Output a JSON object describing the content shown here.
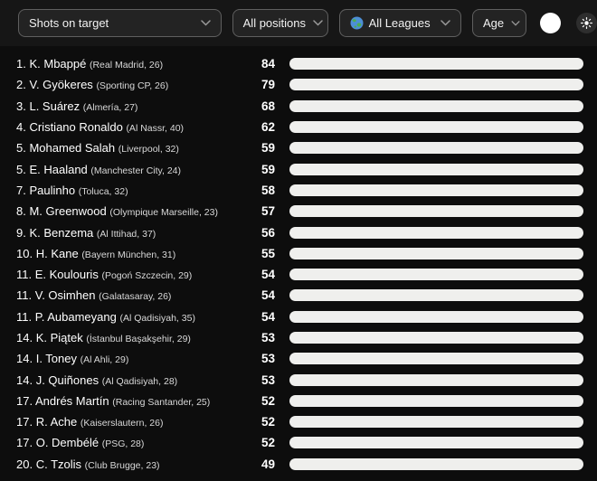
{
  "colors": {
    "background": "#0d0d0d",
    "header_background": "#161616",
    "bar_fill": "#2b6ef0",
    "bar_track": "#efefed",
    "dropdown_background": "#232323",
    "dropdown_border": "#5f5f5f",
    "text_primary": "#ffffff",
    "text_meta": "#d9d9d9"
  },
  "filters": [
    {
      "id": "stat",
      "label": "Shots on target"
    },
    {
      "id": "positions",
      "label": "All positions"
    },
    {
      "id": "leagues",
      "label": "All Leagues",
      "icon": "globe-icon"
    },
    {
      "id": "age",
      "label": "Age"
    }
  ],
  "theme_controls": {
    "toggle": "theme-toggle-circle",
    "sun": "sun-icon"
  },
  "chart_data": {
    "type": "bar",
    "orientation": "horizontal",
    "title": "Shots on target",
    "xlim": [
      0,
      84
    ],
    "max_value": 84,
    "bar_color": "#2b6ef0",
    "track_color": "#efefed",
    "players": [
      {
        "rank": "1.",
        "name": "K. Mbappé",
        "club": "Real Madrid",
        "age": 26,
        "value": 84
      },
      {
        "rank": "2.",
        "name": "V. Gyökeres",
        "club": "Sporting CP",
        "age": 26,
        "value": 79
      },
      {
        "rank": "3.",
        "name": "L. Suárez",
        "club": "Almería",
        "age": 27,
        "value": 68
      },
      {
        "rank": "4.",
        "name": "Cristiano Ronaldo",
        "club": "Al Nassr",
        "age": 40,
        "value": 62
      },
      {
        "rank": "5.",
        "name": "Mohamed Salah",
        "club": "Liverpool",
        "age": 32,
        "value": 59
      },
      {
        "rank": "5.",
        "name": "E. Haaland",
        "club": "Manchester City",
        "age": 24,
        "value": 59
      },
      {
        "rank": "7.",
        "name": "Paulinho",
        "club": "Toluca",
        "age": 32,
        "value": 58
      },
      {
        "rank": "8.",
        "name": "M. Greenwood",
        "club": "Olympique Marseille",
        "age": 23,
        "value": 57
      },
      {
        "rank": "9.",
        "name": "K. Benzema",
        "club": "Al Ittihad",
        "age": 37,
        "value": 56
      },
      {
        "rank": "10.",
        "name": "H. Kane",
        "club": "Bayern München",
        "age": 31,
        "value": 55
      },
      {
        "rank": "11.",
        "name": "E. Koulouris",
        "club": "Pogoń Szczecin",
        "age": 29,
        "value": 54
      },
      {
        "rank": "11.",
        "name": "V. Osimhen",
        "club": "Galatasaray",
        "age": 26,
        "value": 54
      },
      {
        "rank": "11.",
        "name": "P. Aubameyang",
        "club": "Al Qadisiyah",
        "age": 35,
        "value": 54
      },
      {
        "rank": "14.",
        "name": "K. Piątek",
        "club": "İstanbul Başakşehir",
        "age": 29,
        "value": 53
      },
      {
        "rank": "14.",
        "name": "I. Toney",
        "club": "Al Ahli",
        "age": 29,
        "value": 53
      },
      {
        "rank": "14.",
        "name": "J. Quiñones",
        "club": "Al Qadisiyah",
        "age": 28,
        "value": 53
      },
      {
        "rank": "17.",
        "name": "Andrés Martín",
        "club": "Racing Santander",
        "age": 25,
        "value": 52
      },
      {
        "rank": "17.",
        "name": "R. Ache",
        "club": "Kaiserslautern",
        "age": 26,
        "value": 52
      },
      {
        "rank": "17.",
        "name": "O. Dembélé",
        "club": "PSG",
        "age": 28,
        "value": 52
      },
      {
        "rank": "20.",
        "name": "C. Tzolis",
        "club": "Club Brugge",
        "age": 23,
        "value": 49
      }
    ]
  }
}
